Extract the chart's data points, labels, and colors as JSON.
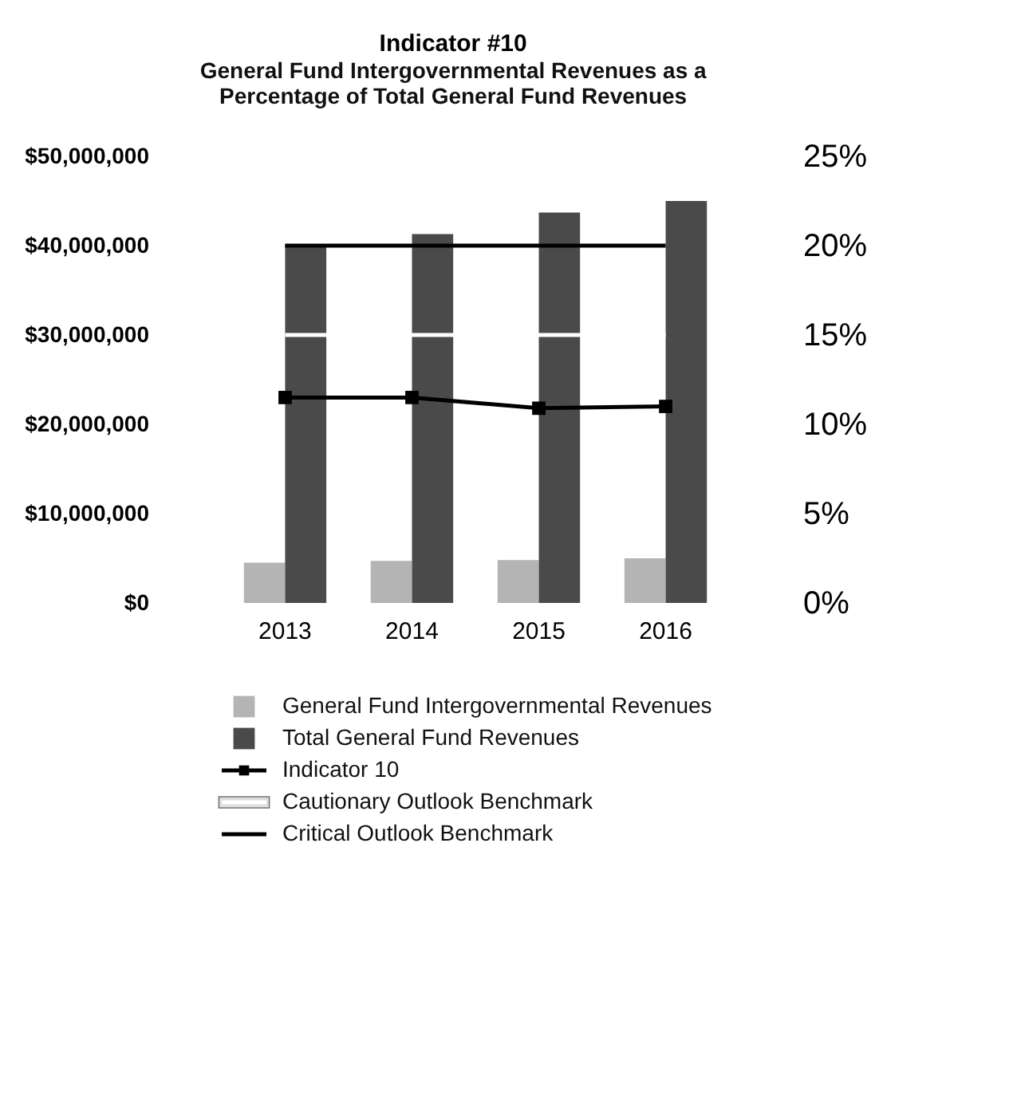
{
  "chart_data": {
    "type": "bar",
    "title": "Indicator #10",
    "subtitle": "General Fund Intergovernmental Revenues as a Percentage of Total General Fund Revenues",
    "categories": [
      "2013",
      "2014",
      "2015",
      "2016"
    ],
    "series": [
      {
        "name": "General Fund Intergovernmental Revenues",
        "color": "#b4b4b4",
        "values": [
          4500000,
          4700000,
          4800000,
          5000000
        ]
      },
      {
        "name": "Total General Fund Revenues",
        "color": "#4a4a4a",
        "values": [
          40100000,
          41300000,
          43700000,
          45000000
        ]
      },
      {
        "type": "line",
        "axis": "y2",
        "name": "Indicator 10",
        "color": "#000000",
        "marker": "square",
        "values": [
          11.5,
          11.5,
          10.9,
          11.0
        ]
      },
      {
        "type": "line",
        "axis": "y2",
        "name": "Cautionary Outlook Benchmark",
        "color": "#ffffff",
        "values": [
          15,
          15,
          15,
          15
        ]
      },
      {
        "type": "line",
        "axis": "y2",
        "name": "Critical Outlook Benchmark",
        "color": "#000000",
        "values": [
          20,
          20,
          20,
          20
        ]
      }
    ],
    "ylim": [
      0,
      50000000
    ],
    "yticks": [
      {
        "value": 0,
        "label": "$0"
      },
      {
        "value": 10000000,
        "label": "$10,000,000"
      },
      {
        "value": 20000000,
        "label": "$20,000,000"
      },
      {
        "value": 30000000,
        "label": "$30,000,000"
      },
      {
        "value": 40000000,
        "label": "$40,000,000"
      },
      {
        "value": 50000000,
        "label": "$50,000,000"
      }
    ],
    "y2lim": [
      0,
      25
    ],
    "y2ticks": [
      {
        "value": 0,
        "label": "0%"
      },
      {
        "value": 5,
        "label": "5%"
      },
      {
        "value": 10,
        "label": "10%"
      },
      {
        "value": 15,
        "label": "15%"
      },
      {
        "value": 20,
        "label": "20%"
      },
      {
        "value": 25,
        "label": "25%"
      }
    ],
    "grid": false,
    "legend": "bottom",
    "line_style": "solid"
  }
}
